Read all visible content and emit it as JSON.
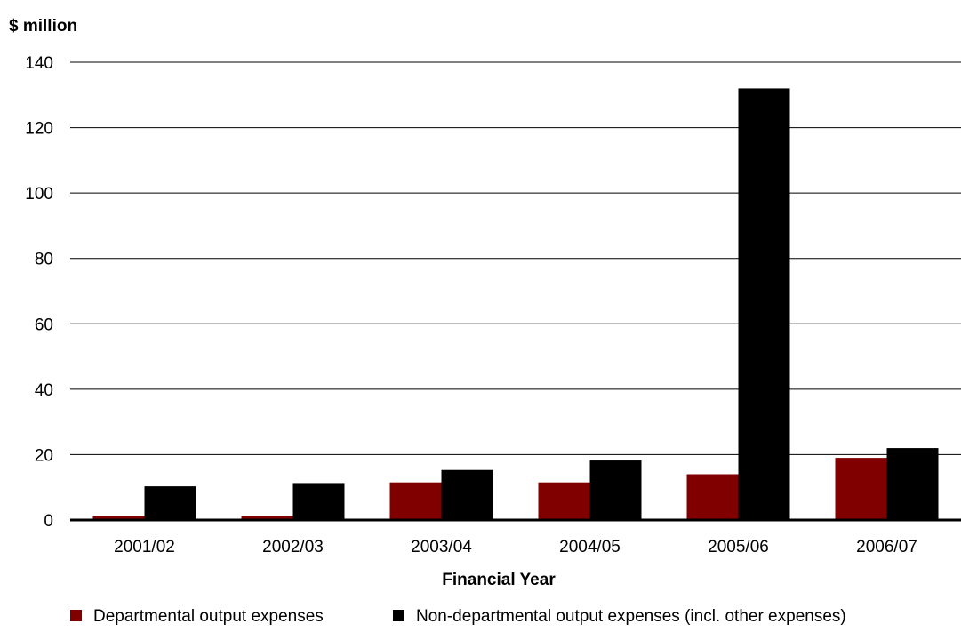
{
  "chart_data": {
    "type": "bar",
    "ylabel": "$ million",
    "xlabel": "Financial Year",
    "categories": [
      "2001/02",
      "2002/03",
      "2003/04",
      "2004/05",
      "2005/06",
      "2006/07"
    ],
    "ylim": [
      0,
      140
    ],
    "yticks": [
      0,
      20,
      40,
      60,
      80,
      100,
      120,
      140
    ],
    "grid": "horizontal",
    "legend_position": "bottom",
    "series": [
      {
        "name": "Departmental output expenses",
        "color": "#800000",
        "values": [
          1.2,
          1.2,
          11.5,
          11.5,
          14.0,
          19.0
        ]
      },
      {
        "name": "Non-departmental output expenses (incl. other expenses)",
        "color": "#000000",
        "values": [
          10.3,
          11.3,
          15.3,
          18.2,
          132.0,
          22.0
        ]
      }
    ]
  }
}
